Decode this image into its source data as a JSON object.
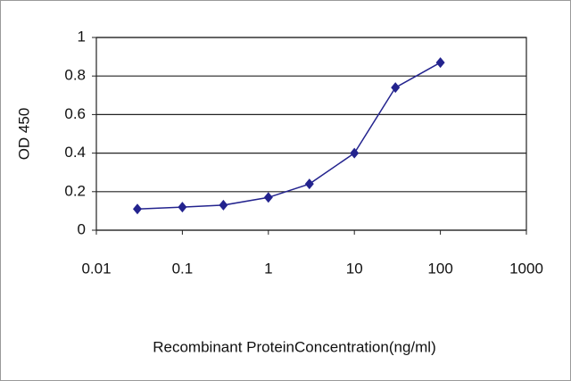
{
  "chart_data": {
    "type": "line",
    "ylabel": "OD 450",
    "xlabel": "Recombinant ProteinConcentration(ng/ml)",
    "x": [
      0.03,
      0.1,
      0.3,
      1,
      3,
      10,
      30,
      100
    ],
    "values": [
      0.11,
      0.12,
      0.13,
      0.17,
      0.24,
      0.4,
      0.74,
      0.87
    ],
    "color": "#23238e",
    "xscale": "log",
    "xlim": [
      0.01,
      1000
    ],
    "xticks": [
      0.01,
      0.1,
      1,
      10,
      100,
      1000
    ],
    "ylim": [
      0,
      1
    ],
    "yticks": [
      0,
      0.2,
      0.4,
      0.6,
      0.8,
      1
    ],
    "grid": true
  }
}
